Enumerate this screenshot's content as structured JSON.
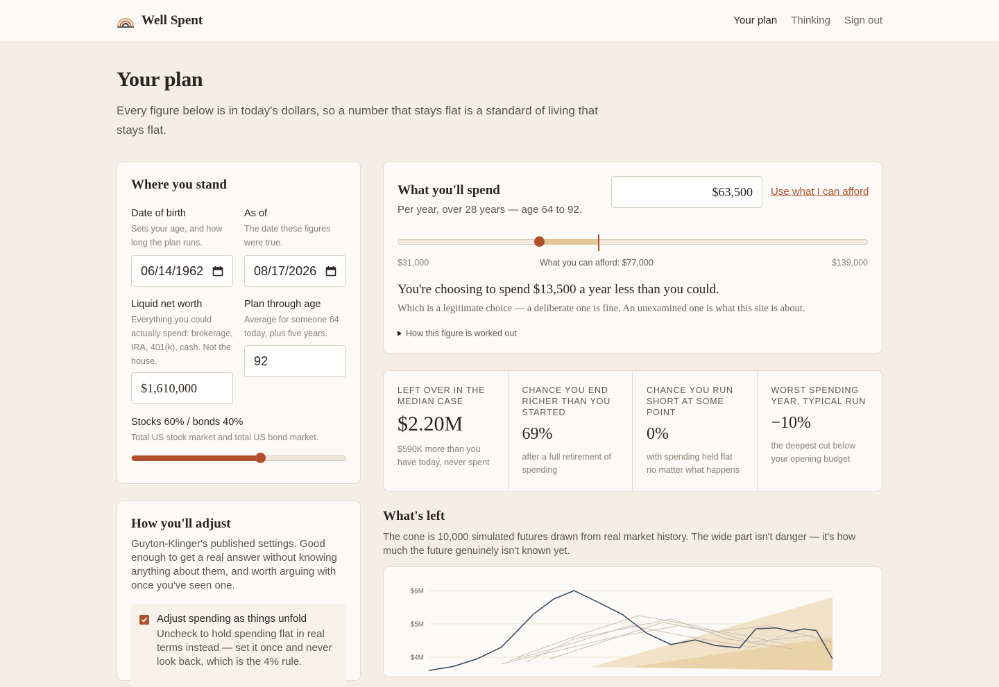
{
  "header": {
    "brand": "Well Spent",
    "nav": [
      {
        "label": "Your plan",
        "active": true
      },
      {
        "label": "Thinking",
        "active": false
      },
      {
        "label": "Sign out",
        "active": false
      }
    ]
  },
  "page": {
    "title": "Your plan",
    "lede": "Every figure below is in today's dollars, so a number that stays flat is a standard of living that stays flat."
  },
  "stand": {
    "title": "Where you stand",
    "dob": {
      "label": "Date of birth",
      "help": "Sets your age, and how long the plan runs.",
      "value": "06/14/1962"
    },
    "asof": {
      "label": "As of",
      "help": "The date these figures were true.",
      "value": "08/17/2026"
    },
    "networth": {
      "label": "Liquid net worth",
      "help": "Everything you could actually spend: brokerage, IRA, 401(k), cash. Not the house.",
      "value": "$1,610,000"
    },
    "plan_age": {
      "label": "Plan through age",
      "help": "Average for someone 64 today, plus five years.",
      "value": "92"
    },
    "allocation": {
      "label": "Stocks 60% / bonds 40%",
      "help": "Total US stock market and total US bond market.",
      "stocks_fraction": 0.6
    }
  },
  "adjust": {
    "title": "How you'll adjust",
    "desc": "Guyton-Klinger's published settings. Good enough to get a real answer without knowing anything about them, and worth arguing with once you've seen one.",
    "option_label": "Adjust spending as things unfold",
    "option_help": "Uncheck to hold spending flat in real terms instead — set it once and never look back, which is the 4% rule.",
    "checked": true
  },
  "spend": {
    "title": "What you'll spend",
    "subtitle": "Per year, over 28 years — age 64 to 92.",
    "value": "$63,500",
    "afford_link": "Use what I can afford",
    "min_label": "$31,000",
    "max_label": "$139,000",
    "afford_label": "What you can afford: $77,000",
    "min": 31000,
    "max": 139000,
    "current": 63500,
    "afford": 77000,
    "headline": "You're choosing to spend $13,500 a year less than you could.",
    "note": "Which is a legitimate choice — a deliberate one is fine. An unexamined one is what this site is about.",
    "details": "How this figure is worked out"
  },
  "stats": [
    {
      "label": "Left over in the median case",
      "value": "$2.20M",
      "sub": "$590K more than you have today, never spent"
    },
    {
      "label": "Chance you end richer than you started",
      "value": "69%",
      "sub": "after a full retirement of spending"
    },
    {
      "label": "Chance you run short at some point",
      "value": "0%",
      "sub": "with spending held flat no matter what happens"
    },
    {
      "label": "Worst spending year, typical run",
      "value": "−10%",
      "sub": "the deepest cut below your opening budget"
    }
  ],
  "whats_left": {
    "title": "What's left",
    "desc": "The cone is 10,000 simulated futures drawn from real market history. The wide part isn't danger — it's how much the future genuinely isn't known yet."
  },
  "chart_data": {
    "type": "area",
    "y_ticks": [
      "$6M",
      "$5M",
      "$4M"
    ],
    "y_tick_values": [
      6,
      5,
      4
    ],
    "ylim_visible": [
      3.8,
      6.2
    ],
    "x_range": [
      0,
      100
    ],
    "highlight_series": {
      "name": "",
      "x": [
        0,
        6,
        12,
        18,
        22,
        26,
        31,
        36,
        42,
        48,
        54,
        60,
        66,
        71,
        77,
        81,
        86,
        90,
        93,
        96,
        100
      ],
      "y": [
        3.6,
        3.72,
        3.95,
        4.3,
        4.8,
        5.3,
        5.75,
        6.0,
        5.65,
        5.28,
        4.72,
        4.38,
        4.52,
        4.35,
        4.28,
        4.85,
        4.88,
        4.78,
        4.85,
        4.8,
        3.95
      ]
    },
    "band_series": [
      {
        "x": [
          20,
          35,
          50,
          65,
          80,
          92
        ],
        "y": [
          3.9,
          4.4,
          4.95,
          4.6,
          4.3,
          4.85
        ]
      },
      {
        "x": [
          22,
          38,
          52,
          66,
          80,
          95
        ],
        "y": [
          4.0,
          4.7,
          5.25,
          4.95,
          4.45,
          4.65
        ]
      },
      {
        "x": [
          24,
          36,
          48,
          60,
          74,
          90
        ],
        "y": [
          3.85,
          4.55,
          4.85,
          5.15,
          4.55,
          4.25
        ]
      },
      {
        "x": [
          30,
          44,
          58,
          70,
          84,
          100
        ],
        "y": [
          3.95,
          4.5,
          5.05,
          4.75,
          4.95,
          4.45
        ]
      },
      {
        "x": [
          18,
          32,
          46,
          62,
          76,
          88
        ],
        "y": [
          3.8,
          4.2,
          4.6,
          4.95,
          4.7,
          4.4
        ]
      }
    ],
    "cone_upper": {
      "x": [
        40,
        100
      ],
      "y": [
        3.7,
        5.8
      ]
    },
    "cone_mid": {
      "x": [
        50,
        100
      ],
      "y": [
        3.7,
        4.6
      ]
    }
  }
}
